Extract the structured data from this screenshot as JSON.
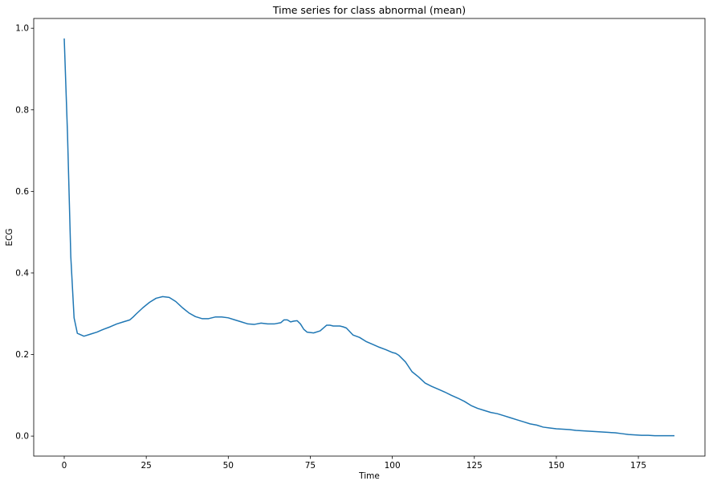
{
  "chart_data": {
    "type": "line",
    "title": "Time series for class abnormal (mean)",
    "xlabel": "Time",
    "ylabel": "ECG",
    "xlim": [
      -9.3,
      195.3
    ],
    "ylim": [
      -0.049,
      1.024
    ],
    "xticks": [
      0,
      25,
      50,
      75,
      100,
      125,
      150,
      175
    ],
    "yticks": [
      0.0,
      0.2,
      0.4,
      0.6,
      0.8,
      1.0
    ],
    "grid": false,
    "color": "#1f77b4",
    "series": [
      {
        "x": [
          0,
          1,
          2,
          3,
          4,
          6,
          8,
          10,
          12,
          14,
          16,
          18,
          20,
          21,
          22,
          24,
          26,
          28,
          30,
          32,
          34,
          36,
          38,
          40,
          42,
          44,
          46,
          48,
          50,
          52,
          54,
          56,
          58,
          60,
          62,
          64,
          66,
          67,
          68,
          69,
          70,
          71,
          72,
          73,
          74,
          76,
          78,
          80,
          81,
          82,
          84,
          85,
          86,
          88,
          90,
          92,
          94,
          96,
          98,
          100,
          101,
          102,
          104,
          106,
          108,
          110,
          112,
          114,
          116,
          118,
          120,
          122,
          124,
          126,
          128,
          130,
          132,
          134,
          136,
          138,
          140,
          142,
          144,
          146,
          148,
          150,
          152,
          154,
          156,
          158,
          160,
          162,
          164,
          166,
          168,
          170,
          172,
          174,
          176,
          178,
          180,
          182,
          184,
          186
        ],
        "y": [
          0.975,
          0.74,
          0.44,
          0.29,
          0.252,
          0.245,
          0.25,
          0.255,
          0.262,
          0.268,
          0.275,
          0.28,
          0.285,
          0.292,
          0.3,
          0.315,
          0.328,
          0.338,
          0.342,
          0.34,
          0.33,
          0.315,
          0.302,
          0.293,
          0.288,
          0.288,
          0.292,
          0.292,
          0.29,
          0.285,
          0.28,
          0.275,
          0.274,
          0.277,
          0.275,
          0.275,
          0.278,
          0.285,
          0.285,
          0.28,
          0.282,
          0.283,
          0.275,
          0.262,
          0.255,
          0.253,
          0.258,
          0.272,
          0.272,
          0.27,
          0.27,
          0.268,
          0.265,
          0.248,
          0.242,
          0.232,
          0.225,
          0.218,
          0.212,
          0.205,
          0.203,
          0.198,
          0.182,
          0.158,
          0.145,
          0.13,
          0.122,
          0.115,
          0.108,
          0.1,
          0.093,
          0.085,
          0.075,
          0.068,
          0.063,
          0.058,
          0.055,
          0.05,
          0.045,
          0.04,
          0.035,
          0.03,
          0.027,
          0.022,
          0.02,
          0.018,
          0.017,
          0.016,
          0.014,
          0.013,
          0.012,
          0.011,
          0.01,
          0.009,
          0.008,
          0.006,
          0.004,
          0.003,
          0.002,
          0.002,
          0.001,
          0.001,
          0.001,
          0.001
        ]
      }
    ]
  }
}
